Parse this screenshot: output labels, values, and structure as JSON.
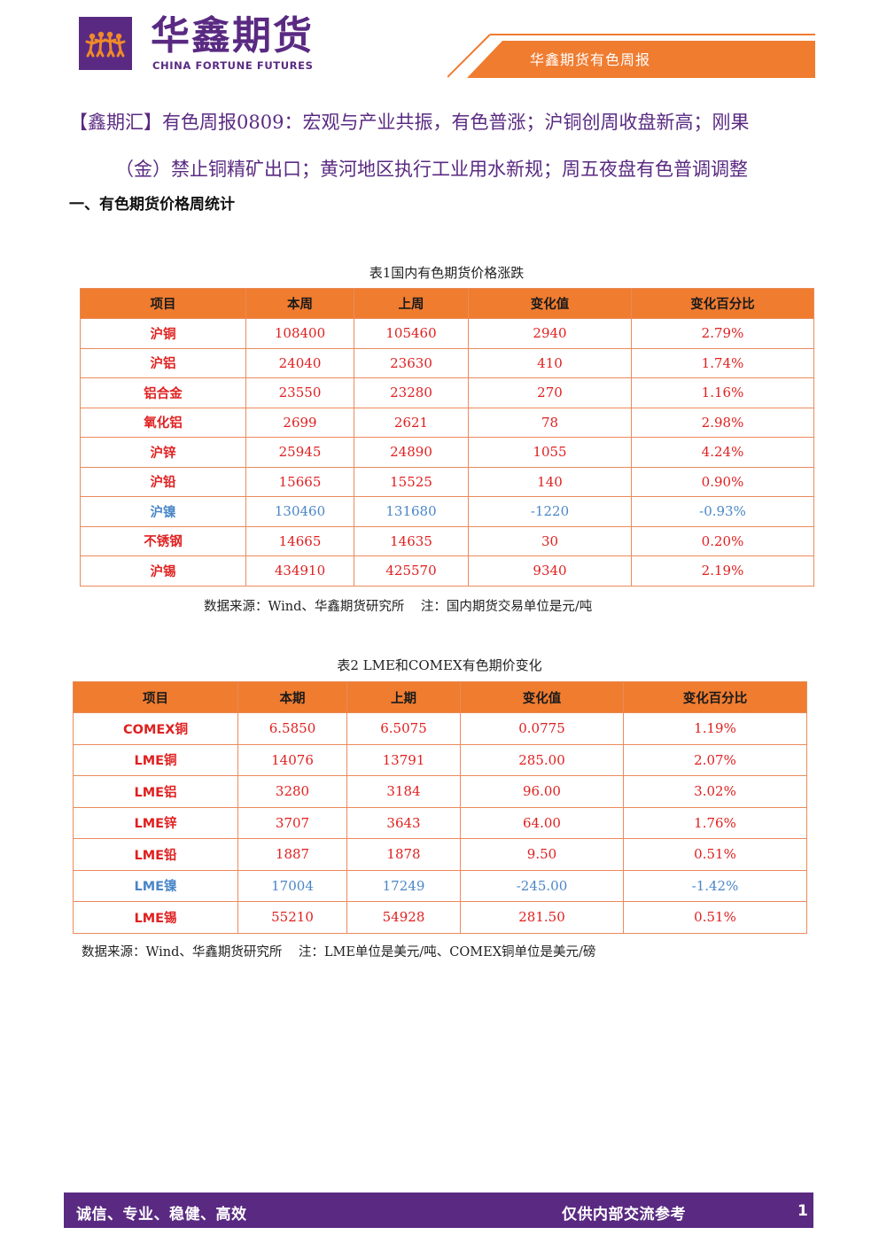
{
  "header": {
    "brand_cn": "华鑫期货",
    "brand_en": "CHINA FORTUNE FUTURES",
    "report_title": "华鑫期货有色周报"
  },
  "headline": {
    "line1": "【鑫期汇】有色周报0809：宏观与产业共振，有色普涨；沪铜创周收盘新高；刚果",
    "line2": "（金）禁止铜精矿出口；黄河地区执行工业用水新规；周五夜盘有色普调调整"
  },
  "section": {
    "title": "一、有色期货价格周统计"
  },
  "table1": {
    "caption": "表1国内有色期货价格涨跌",
    "headers": [
      "项目",
      "本周",
      "上周",
      "变化值",
      "变化百分比"
    ],
    "rows": [
      {
        "name": "沪铜",
        "cur": "108400",
        "prev": "105460",
        "chg": "2940",
        "pct": "2.79%"
      },
      {
        "name": "沪铝",
        "cur": "24040",
        "prev": "23630",
        "chg": "410",
        "pct": "1.74%"
      },
      {
        "name": "铝合金",
        "cur": "23550",
        "prev": "23280",
        "chg": "270",
        "pct": "1.16%"
      },
      {
        "name": "氧化铝",
        "cur": "2699",
        "prev": "2621",
        "chg": "78",
        "pct": "2.98%"
      },
      {
        "name": "沪锌",
        "cur": "25945",
        "prev": "24890",
        "chg": "1055",
        "pct": "4.24%"
      },
      {
        "name": "沪铅",
        "cur": "15665",
        "prev": "15525",
        "chg": "140",
        "pct": "0.90%"
      },
      {
        "name": "沪镍",
        "cur": "130460",
        "prev": "131680",
        "chg": "-1220",
        "pct": "-0.93%"
      },
      {
        "name": "不锈钢",
        "cur": "14665",
        "prev": "14635",
        "chg": "30",
        "pct": "0.20%"
      },
      {
        "name": "沪锡",
        "cur": "434910",
        "prev": "425570",
        "chg": "9340",
        "pct": "2.19%"
      }
    ],
    "source": "数据来源：Wind、华鑫期货研究所    注：国内期货交易单位是元/吨"
  },
  "table2": {
    "caption": "表2 LME和COMEX有色期价变化",
    "headers": [
      "项目",
      "本期",
      "上期",
      "变化值",
      "变化百分比"
    ],
    "rows": [
      {
        "name": "COMEX铜",
        "cur": "6.5850",
        "prev": "6.5075",
        "chg": "0.0775",
        "pct": "1.19%"
      },
      {
        "name": "LME铜",
        "cur": "14076",
        "prev": "13791",
        "chg": "285.00",
        "pct": "2.07%"
      },
      {
        "name": "LME铝",
        "cur": "3280",
        "prev": "3184",
        "chg": "96.00",
        "pct": "3.02%"
      },
      {
        "name": "LME锌",
        "cur": "3707",
        "prev": "3643",
        "chg": "64.00",
        "pct": "1.76%"
      },
      {
        "name": "LME铅",
        "cur": "1887",
        "prev": "1878",
        "chg": "9.50",
        "pct": "0.51%"
      },
      {
        "name": "LME镍",
        "cur": "17004",
        "prev": "17249",
        "chg": "-245.00",
        "pct": "-1.42%"
      },
      {
        "name": "LME锡",
        "cur": "55210",
        "prev": "54928",
        "chg": "281.50",
        "pct": "0.51%"
      }
    ],
    "source": "数据来源：Wind、华鑫期货研究所    注：LME单位是美元/吨、COMEX铜单位是美元/磅"
  },
  "footer": {
    "slogan": "诚信、专业、稳健、高效",
    "internal": "仅供内部交流参考",
    "page": "1"
  },
  "colors": {
    "brand_purple": "#5a2a82",
    "header_orange": "#f07c30",
    "up_red": "#e02020",
    "down_blue": "#4a86c8"
  }
}
